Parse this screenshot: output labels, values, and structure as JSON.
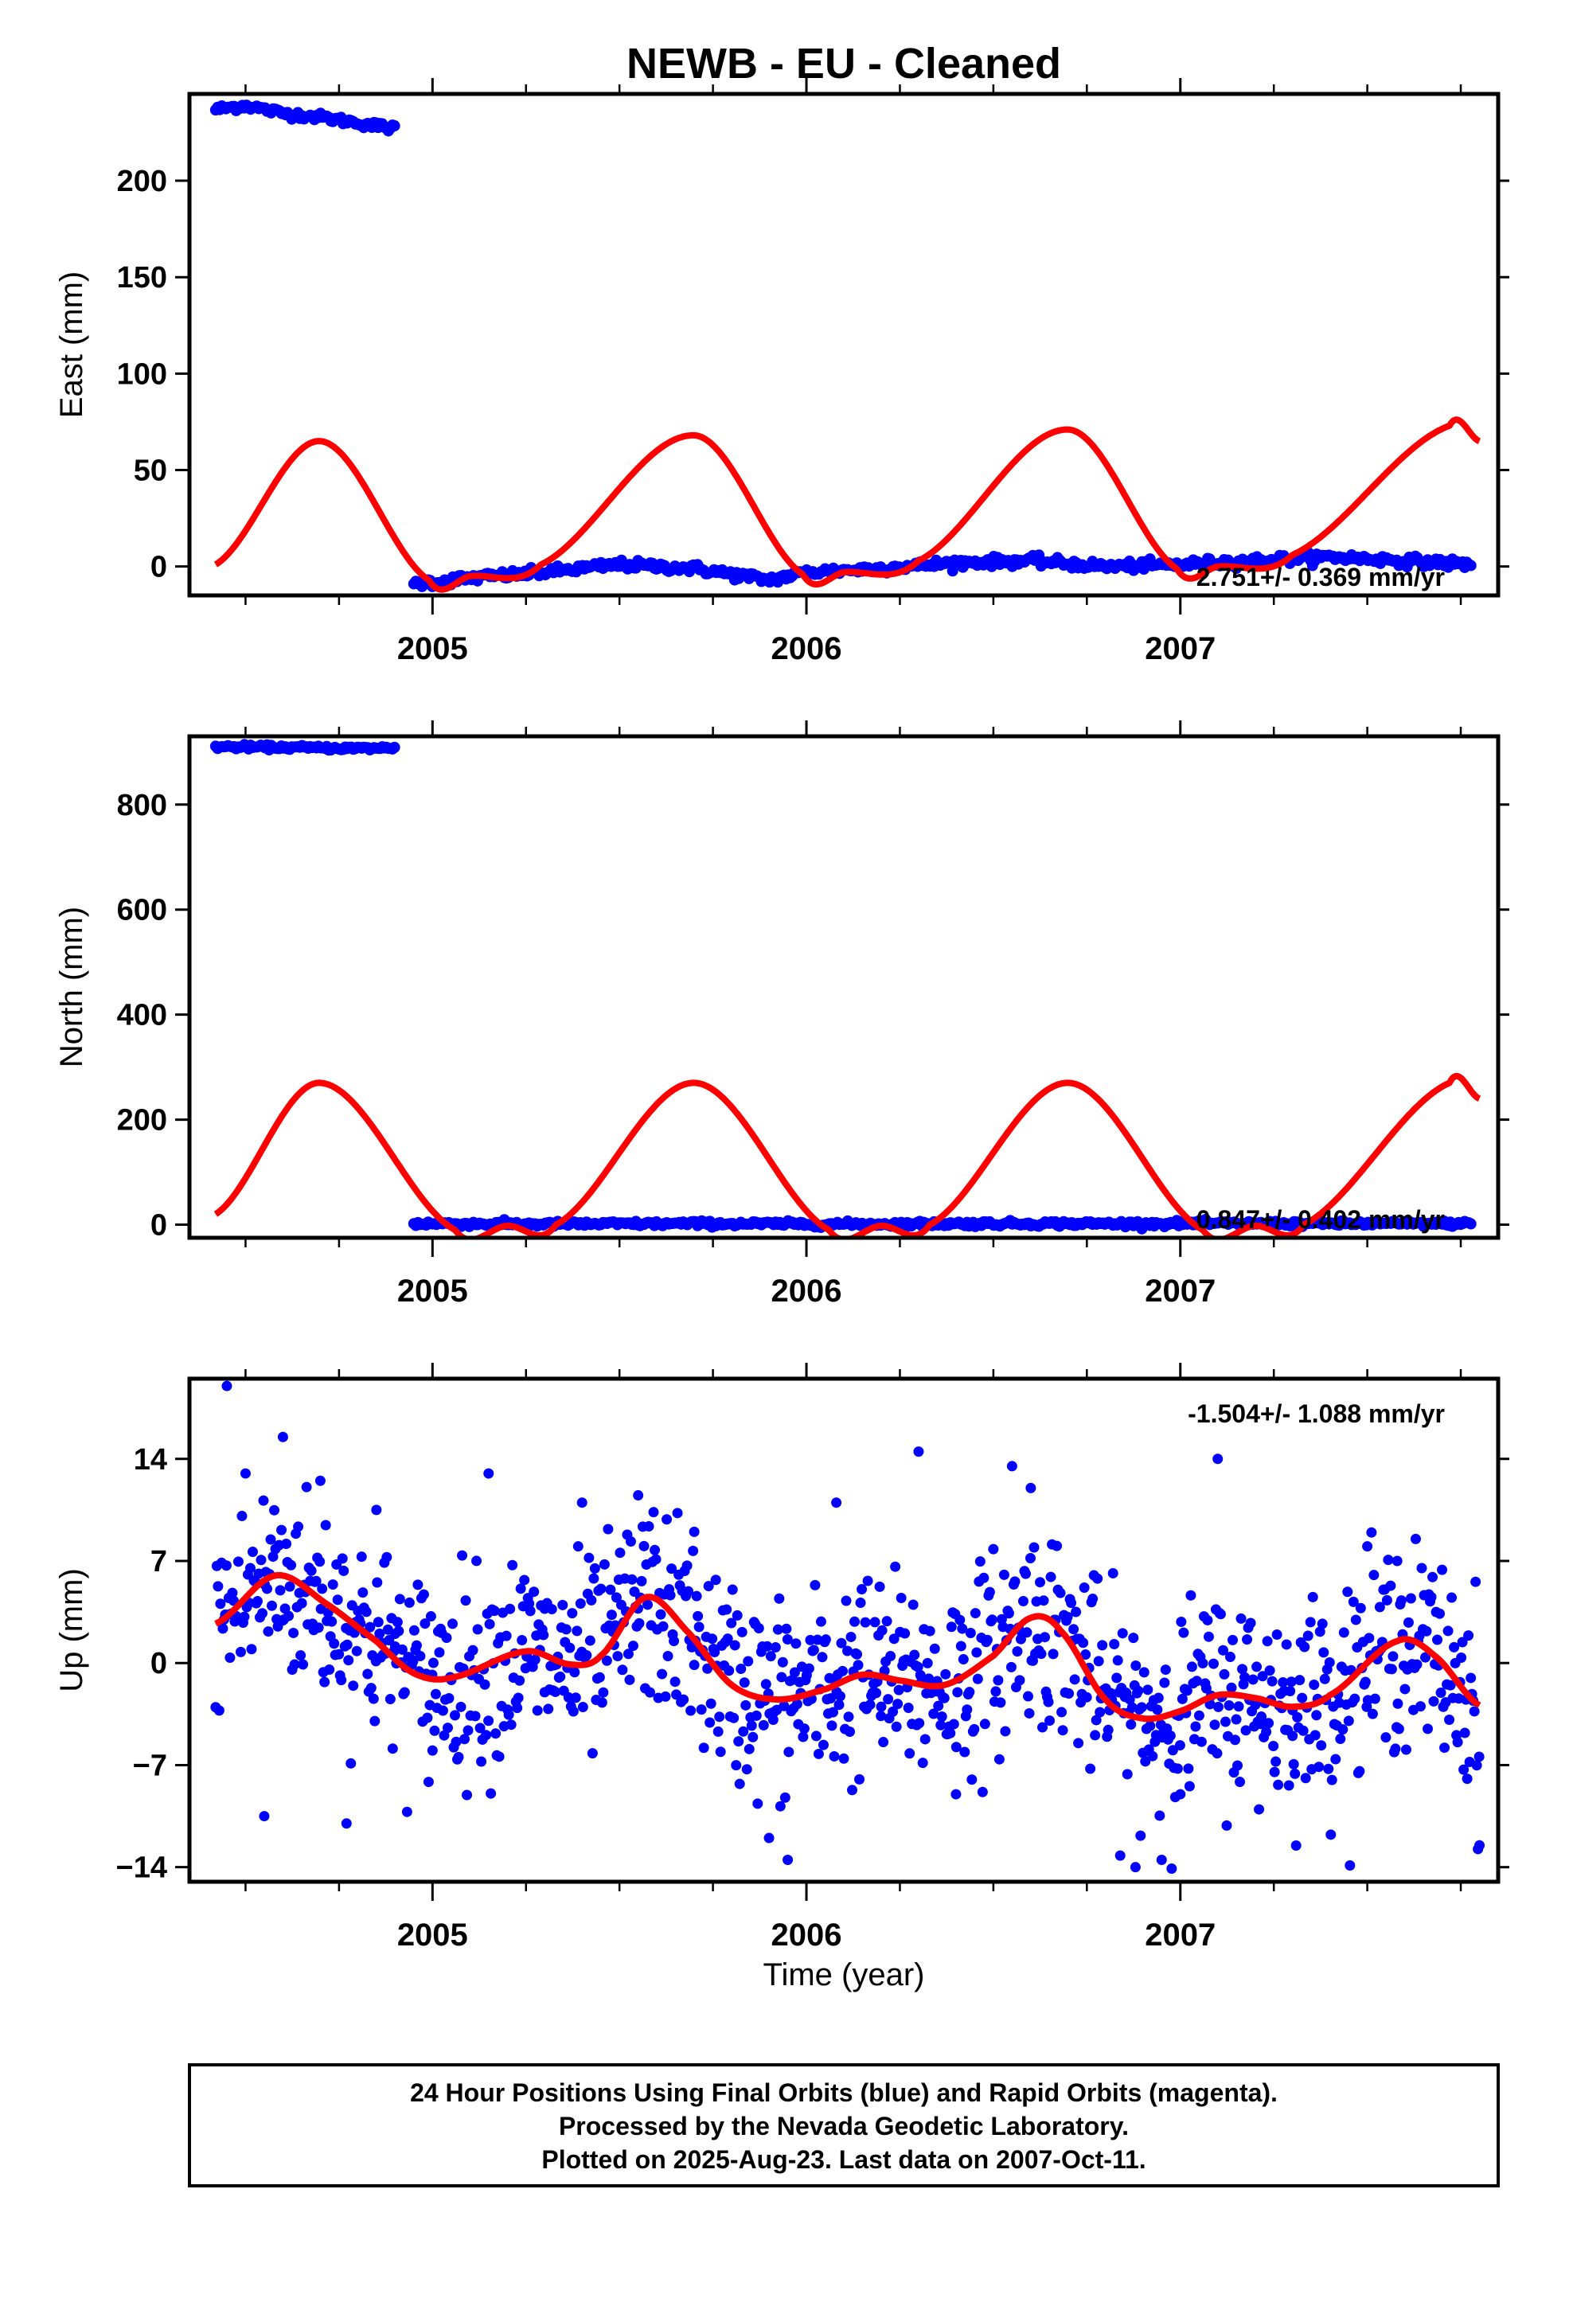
{
  "title": "NEWB  - EU - Cleaned",
  "colors": {
    "data": "#0000ff",
    "model": "#ff0000",
    "frame": "#000000"
  },
  "x_ticks": [
    "2005",
    "2006",
    "2007"
  ],
  "x_label": "Time (year)",
  "caption": {
    "line1": "24 Hour Positions Using Final Orbits (blue) and Rapid Orbits (magenta).",
    "line2": "Processed by the Nevada Geodetic Laboratory.",
    "line3": "Plotted on 2025-Aug-23. Last data on 2007-Oct-11."
  },
  "chart_data": [
    {
      "type": "scatter",
      "ylabel": "East (mm)",
      "xlim": [
        2004.35,
        2007.85
      ],
      "ylim": [
        -15,
        245
      ],
      "yticks": [
        0,
        50,
        100,
        150,
        200
      ],
      "ytick_labels": [
        "0",
        "50",
        "100",
        "150",
        "200"
      ],
      "rate": "2.751+/- 0.369 mm/yr",
      "rate_position": "bottom-right",
      "series": [
        {
          "kind": "points",
          "color": "#0000ff",
          "points": [
            [
              2004.42,
              237
            ],
            [
              2004.5,
              239
            ],
            [
              2004.6,
              235
            ],
            [
              2004.7,
              233
            ],
            [
              2004.8,
              230
            ],
            [
              2004.9,
              227
            ],
            [
              2004.95,
              -9
            ],
            [
              2005.1,
              -6
            ],
            [
              2005.3,
              -3
            ],
            [
              2005.5,
              1
            ],
            [
              2005.7,
              -1
            ],
            [
              2005.9,
              -7
            ],
            [
              2006.0,
              -3
            ],
            [
              2006.2,
              -1
            ],
            [
              2006.4,
              2
            ],
            [
              2006.6,
              3
            ],
            [
              2006.8,
              0
            ],
            [
              2007.0,
              1
            ],
            [
              2007.2,
              3
            ],
            [
              2007.4,
              5
            ],
            [
              2007.6,
              3
            ],
            [
              2007.78,
              1
            ]
          ]
        },
        {
          "kind": "line",
          "color": "#ff0000",
          "points": [
            [
              2004.42,
              1
            ],
            [
              2004.7,
              65
            ],
            [
              2004.99,
              -7
            ],
            [
              2005.1,
              -5
            ],
            [
              2005.29,
              1
            ],
            [
              2005.7,
              68
            ],
            [
              2005.99,
              -4
            ],
            [
              2006.1,
              -3
            ],
            [
              2006.3,
              3
            ],
            [
              2006.7,
              71
            ],
            [
              2006.99,
              -1
            ],
            [
              2007.1,
              0
            ],
            [
              2007.3,
              6
            ],
            [
              2007.72,
              73
            ],
            [
              2007.8,
              65
            ]
          ]
        }
      ]
    },
    {
      "type": "scatter",
      "ylabel": "North (mm)",
      "xlim": [
        2004.35,
        2007.85
      ],
      "ylim": [
        -25,
        930
      ],
      "yticks": [
        0,
        200,
        400,
        600,
        800
      ],
      "ytick_labels": [
        "0",
        "200",
        "400",
        "600",
        "800"
      ],
      "rate": "0.847+/- 0.402 mm/yr",
      "rate_position": "bottom-right",
      "series": [
        {
          "kind": "points",
          "color": "#0000ff",
          "points": [
            [
              2004.42,
              910
            ],
            [
              2004.6,
              909
            ],
            [
              2004.8,
              907
            ],
            [
              2004.9,
              908
            ],
            [
              2004.95,
              2
            ],
            [
              2005.3,
              1
            ],
            [
              2005.7,
              2
            ],
            [
              2006.1,
              1
            ],
            [
              2006.5,
              2
            ],
            [
              2007.0,
              2
            ],
            [
              2007.4,
              2
            ],
            [
              2007.78,
              2
            ]
          ]
        },
        {
          "kind": "line",
          "color": "#ff0000",
          "points": [
            [
              2004.42,
              20
            ],
            [
              2004.7,
              270
            ],
            [
              2005.06,
              -10
            ],
            [
              2005.2,
              -2
            ],
            [
              2005.33,
              0
            ],
            [
              2005.7,
              270
            ],
            [
              2006.06,
              -10
            ],
            [
              2006.2,
              -2
            ],
            [
              2006.33,
              0
            ],
            [
              2006.7,
              270
            ],
            [
              2007.06,
              -10
            ],
            [
              2007.2,
              -2
            ],
            [
              2007.33,
              0
            ],
            [
              2007.72,
              270
            ],
            [
              2007.8,
              240
            ]
          ]
        }
      ]
    },
    {
      "type": "scatter",
      "ylabel": "Up (mm)",
      "xlim": [
        2004.35,
        2007.85
      ],
      "ylim": [
        -15,
        19.5
      ],
      "yticks": [
        -14,
        -7,
        0,
        7,
        14
      ],
      "ytick_labels": [
        "-14",
        "-7",
        "0",
        "7",
        "14"
      ],
      "rate": "-1.504+/- 1.088 mm/yr",
      "rate_position": "top-right",
      "series": [
        {
          "kind": "points",
          "color": "#0000ff",
          "points": [
            [
              2004.45,
              19
            ],
            [
              2004.5,
              13
            ],
            [
              2004.55,
              -10.5
            ],
            [
              2004.6,
              15.5
            ],
            [
              2004.7,
              12.5
            ],
            [
              2004.77,
              -11
            ],
            [
              2004.85,
              10.5
            ],
            [
              2005.0,
              -6
            ],
            [
              2005.15,
              13
            ],
            [
              2005.4,
              11
            ],
            [
              2005.55,
              11.5
            ],
            [
              2005.7,
              9
            ],
            [
              2005.9,
              -12
            ],
            [
              2005.95,
              -13.5
            ],
            [
              2006.08,
              11
            ],
            [
              2006.3,
              14.5
            ],
            [
              2006.4,
              -9
            ],
            [
              2006.55,
              13.5
            ],
            [
              2006.6,
              12
            ],
            [
              2006.88,
              -14
            ],
            [
              2006.95,
              -13.5
            ],
            [
              2007.1,
              14
            ],
            [
              2007.5,
              8
            ],
            [
              2007.58,
              7
            ],
            [
              2007.8,
              -12.5
            ],
            [
              2007.0,
              -9
            ],
            [
              2006.2,
              -3
            ],
            [
              2005.3,
              -2
            ],
            [
              2004.9,
              2
            ],
            [
              2007.3,
              -5
            ]
          ]
        },
        {
          "kind": "line",
          "color": "#ff0000",
          "points": [
            [
              2004.42,
              2.7
            ],
            [
              2004.58,
              6
            ],
            [
              2004.72,
              4
            ],
            [
              2004.85,
              1.5
            ],
            [
              2004.95,
              -0.7
            ],
            [
              2005.05,
              -1
            ],
            [
              2005.25,
              0.8
            ],
            [
              2005.37,
              -0.1
            ],
            [
              2005.45,
              0.5
            ],
            [
              2005.57,
              4.5
            ],
            [
              2005.68,
              2.2
            ],
            [
              2005.8,
              -1.5
            ],
            [
              2005.92,
              -2.5
            ],
            [
              2006.05,
              -1.8
            ],
            [
              2006.15,
              -0.8
            ],
            [
              2006.25,
              -1.2
            ],
            [
              2006.37,
              -1.5
            ],
            [
              2006.5,
              0.5
            ],
            [
              2006.6,
              3.1
            ],
            [
              2006.68,
              2.2
            ],
            [
              2006.8,
              -2.5
            ],
            [
              2006.9,
              -3.8
            ],
            [
              2007.0,
              -3.3
            ],
            [
              2007.1,
              -2.2
            ],
            [
              2007.2,
              -2.4
            ],
            [
              2007.3,
              -3
            ],
            [
              2007.4,
              -2.2
            ],
            [
              2007.58,
              1.5
            ],
            [
              2007.68,
              0.5
            ],
            [
              2007.8,
              -2.9
            ]
          ]
        }
      ]
    }
  ]
}
